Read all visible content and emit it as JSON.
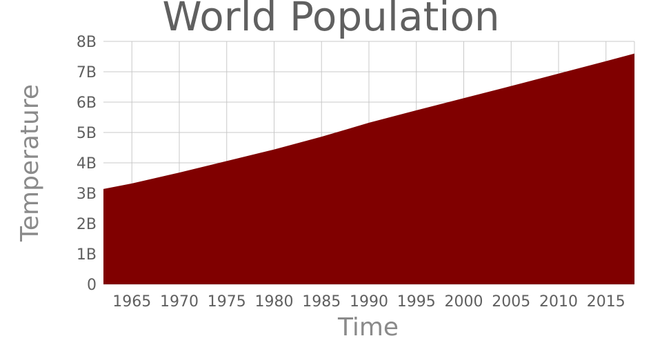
{
  "chart_data": {
    "type": "area",
    "title": "World Population",
    "xlabel": "Time",
    "ylabel": "Temperature",
    "xlim": [
      1962,
      2018
    ],
    "ylim": [
      0,
      8000000000
    ],
    "x_ticks": [
      1965,
      1970,
      1975,
      1980,
      1985,
      1990,
      1995,
      2000,
      2005,
      2010,
      2015
    ],
    "x_tick_labels": [
      "1965",
      "1970",
      "1975",
      "1980",
      "1985",
      "1990",
      "1995",
      "2000",
      "2005",
      "2010",
      "2015"
    ],
    "y_ticks": [
      0,
      1000000000,
      2000000000,
      3000000000,
      4000000000,
      5000000000,
      6000000000,
      7000000000,
      8000000000
    ],
    "y_tick_labels": [
      "0",
      "1B",
      "2B",
      "3B",
      "4B",
      "5B",
      "6B",
      "7B",
      "8B"
    ],
    "grid": true,
    "fill_color": "#800000",
    "series": [
      {
        "x": [
          1962,
          1965,
          1970,
          1975,
          1980,
          1985,
          1990,
          1995,
          2000,
          2005,
          2010,
          2015,
          2018
        ],
        "values": [
          3140000000,
          3320000000,
          3680000000,
          4060000000,
          4440000000,
          4860000000,
          5320000000,
          5730000000,
          6130000000,
          6530000000,
          6940000000,
          7350000000,
          7600000000
        ]
      }
    ]
  }
}
